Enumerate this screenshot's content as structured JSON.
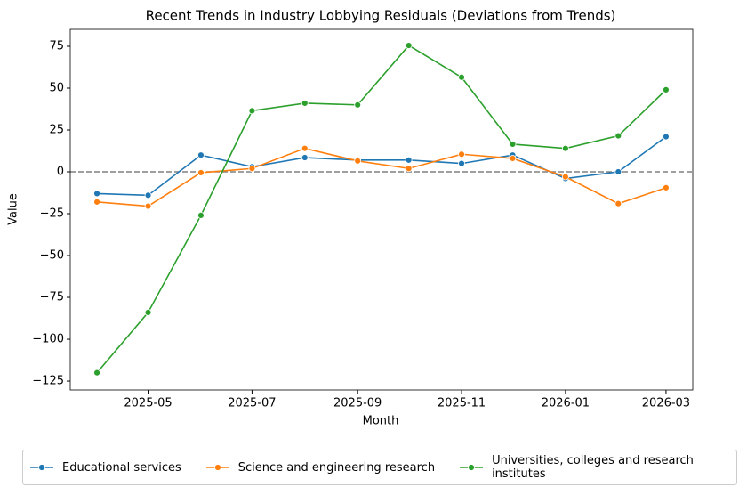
{
  "chart_data": {
    "type": "line",
    "title": "Recent Trends in Industry Lobbying Residuals (Deviations from Trends)",
    "xlabel": "Month",
    "ylabel": "Value",
    "x": [
      "2025-04",
      "2025-05",
      "2025-06",
      "2025-07",
      "2025-08",
      "2025-09",
      "2025-10",
      "2025-11",
      "2025-12",
      "2026-01",
      "2026-02",
      "2026-03"
    ],
    "xticks": [
      "2025-05",
      "2025-07",
      "2025-09",
      "2025-11",
      "2026-01",
      "2026-03"
    ],
    "ylim": [
      -130.3,
      85.1
    ],
    "yticks": [
      {
        "value": -125,
        "label": "−125"
      },
      {
        "value": -100,
        "label": "−100"
      },
      {
        "value": -75,
        "label": "−75"
      },
      {
        "value": -50,
        "label": "−50"
      },
      {
        "value": -25,
        "label": "−25"
      },
      0,
      25,
      50,
      75
    ],
    "hline": 0,
    "series": [
      {
        "name": "Educational services",
        "color": "#1f77b4",
        "values": [
          -13,
          -14,
          10,
          3,
          8.5,
          7,
          7,
          5,
          10,
          -4,
          0,
          21
        ]
      },
      {
        "name": "Science and engineering research",
        "color": "#ff7f0e",
        "values": [
          -18,
          -20.5,
          -0.5,
          2,
          14,
          6.5,
          2,
          10.5,
          8,
          -3,
          -19,
          -9.5
        ]
      },
      {
        "name": "Universities, colleges and research institutes",
        "color": "#2ca02c",
        "values": [
          -120,
          -84,
          -26,
          36.5,
          41,
          40,
          75.5,
          56.5,
          16.5,
          14,
          21.5,
          49
        ]
      }
    ]
  }
}
